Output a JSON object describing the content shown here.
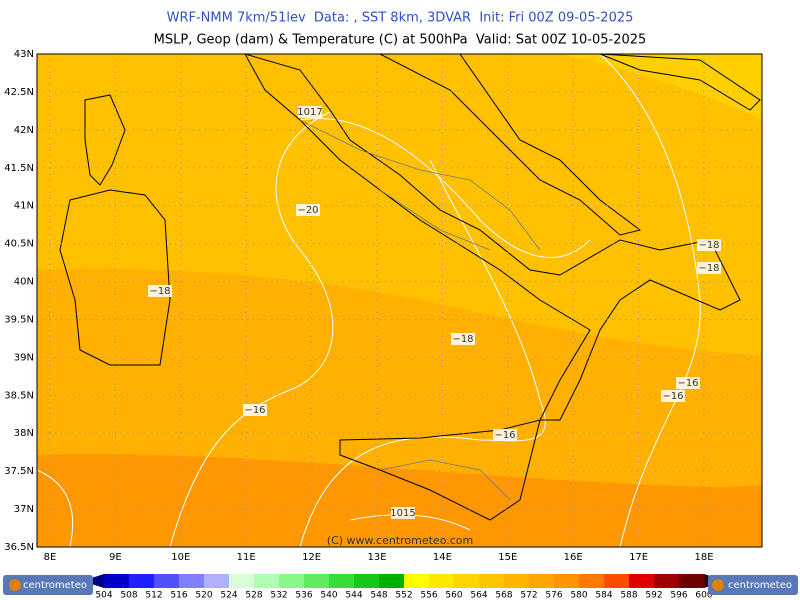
{
  "header": {
    "line1": "WRF-NMM 7km/51lev  Data: , SST 8km, 3DVAR  Init: Fri 00Z 09-05-2025",
    "line2": "MSLP, Geop (dam) & Temperature (C) at 500hPa  Valid: Sat 00Z 10-05-2025"
  },
  "map": {
    "lat_labels": [
      "43N",
      "42.5N",
      "42N",
      "41.5N",
      "41N",
      "40.5N",
      "40N",
      "39.5N",
      "39N",
      "38.5N",
      "38N",
      "37.5N",
      "37N",
      "36.5N"
    ],
    "lon_labels": [
      "8E",
      "9E",
      "10E",
      "11E",
      "12E",
      "13E",
      "14E",
      "15E",
      "16E",
      "17E",
      "18E"
    ],
    "contour_labels": [
      "1017",
      "−20",
      "−18",
      "−16",
      "−18",
      "−16",
      "1015",
      "−18",
      "−18",
      "−16",
      "−16"
    ],
    "credit": "(C) www.centrometeo.com"
  },
  "colorbar": {
    "levels": [
      504,
      508,
      512,
      516,
      520,
      524,
      528,
      532,
      536,
      540,
      544,
      548,
      552,
      556,
      560,
      564,
      568,
      572,
      576,
      580,
      584,
      588,
      592,
      596,
      600
    ],
    "colors": [
      "#000080",
      "#0000c8",
      "#2020ff",
      "#5050ff",
      "#8080ff",
      "#b0b0ff",
      "#d8ffd8",
      "#b0ffb0",
      "#88f888",
      "#60ec60",
      "#38dc38",
      "#18c818",
      "#00b000",
      "#ffff00",
      "#ffe800",
      "#ffd400",
      "#ffc400",
      "#ffb400",
      "#ffa400",
      "#ff9400",
      "#ff7800",
      "#ff4c00",
      "#e00000",
      "#a00000",
      "#700000",
      "#400000"
    ]
  },
  "logos": [
    "centrometeo",
    "centrometeo"
  ]
}
